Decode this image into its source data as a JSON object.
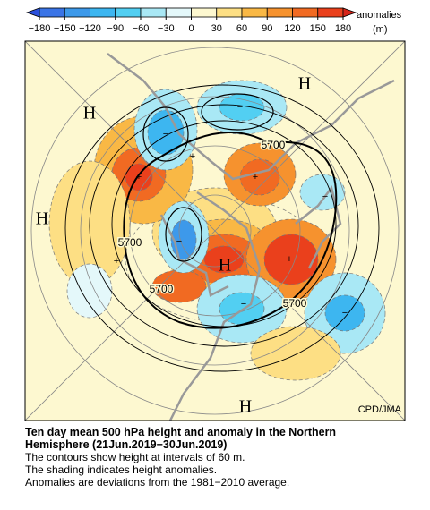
{
  "colorbar": {
    "unit_label": "anomalies",
    "unit": "(m)",
    "ticks": [
      {
        "value": -180,
        "label": "−180"
      },
      {
        "value": -150,
        "label": "−150"
      },
      {
        "value": -120,
        "label": "−120"
      },
      {
        "value": -90,
        "label": "−90"
      },
      {
        "value": -60,
        "label": "−60"
      },
      {
        "value": -30,
        "label": "−30"
      },
      0,
      30,
      60,
      90,
      120,
      150,
      180
    ],
    "colors": [
      "#2a4fdc",
      "#3a74e6",
      "#3d99ea",
      "#3db6f0",
      "#52cff2",
      "#a9e8f5",
      "#e4f8fa",
      "#fdf8d0",
      "#fddf84",
      "#f9b845",
      "#f6922e",
      "#f16a22",
      "#ea401c",
      "#d62418"
    ]
  },
  "map": {
    "labels": [
      {
        "text": "H"
      },
      {
        "text": "H"
      },
      {
        "text": "H"
      },
      {
        "text": "H"
      },
      {
        "text": "H"
      },
      {
        "text": "5700"
      },
      {
        "text": "5700"
      },
      {
        "text": "5700"
      },
      {
        "text": "5700"
      }
    ],
    "credit": "CPD/JMA"
  },
  "caption": {
    "title_lines": [
      "Ten day mean 500 hPa height and anomaly in the Northern",
      "Hemisphere (21Jun.2019−30Jun.2019)"
    ],
    "lines": [
      "The contours show height at intervals of 60 m.",
      "The shading indicates height anomalies.",
      "Anomalies are deviations from the 1981−2010 average."
    ]
  }
}
